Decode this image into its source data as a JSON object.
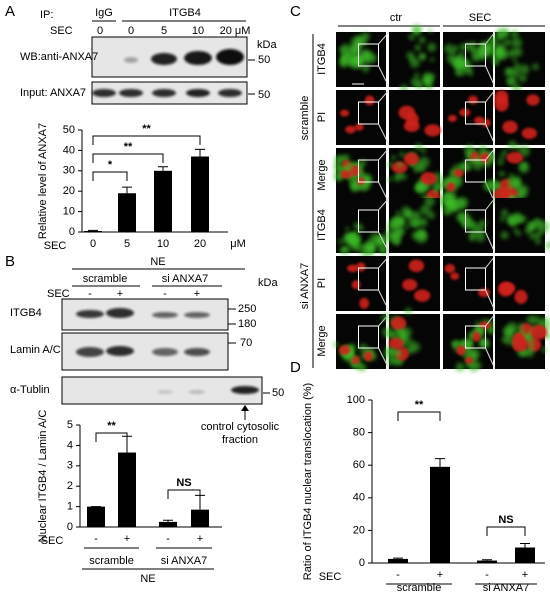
{
  "panel_labels": [
    "A",
    "B",
    "C",
    "D"
  ],
  "panel_a_blot": {
    "ip_label": "IP:",
    "ip_groups": [
      "IgG",
      "ITGB4"
    ],
    "treatment_label": "SEC",
    "lanes": [
      "0",
      "0",
      "5",
      "10",
      "20 μM"
    ],
    "kda_label": "kDa",
    "rows": [
      {
        "label": "WB:anti-ANXA7",
        "marker": "50"
      },
      {
        "label": "Input: ANXA7",
        "marker": "50"
      }
    ]
  },
  "panel_b_blot": {
    "fraction": "NE",
    "groups": [
      "scramble",
      "si ANXA7"
    ],
    "treatment_label": "SEC",
    "lanes": [
      "-",
      "+",
      "-",
      "+"
    ],
    "kda_label": "kDa",
    "rows": [
      {
        "label": "ITGB4",
        "markers": [
          "250",
          "180"
        ]
      },
      {
        "label": "Lamin A/C",
        "markers": [
          "70"
        ]
      },
      {
        "label": "α-Tublin",
        "markers": [
          "50"
        ]
      }
    ],
    "control_note": [
      "control cytosolic",
      "fraction"
    ]
  },
  "panel_c": {
    "conditions": [
      "ctr",
      "SEC"
    ],
    "groups": [
      "scramble",
      "si ANXA7"
    ],
    "channels": [
      "ITGB4",
      "PI",
      "Merge"
    ]
  },
  "chart_data": [
    {
      "type": "bar",
      "ylabel": "Relative level of ANXA7",
      "treatment_label": "SEC",
      "unit": "μM",
      "categories": [
        "0",
        "5",
        "10",
        "20"
      ],
      "values": [
        0.5,
        19,
        30,
        37
      ],
      "errors": [
        0.3,
        3,
        2,
        3.5
      ],
      "color": "#000000",
      "ylim": [
        0,
        50
      ],
      "yticks": [
        0,
        10,
        20,
        30,
        40,
        50
      ],
      "annotations": [
        "*",
        "**",
        "**"
      ]
    },
    {
      "type": "bar",
      "ylabel": "Nuclear ITGB4 / Lamin A/C",
      "treatment_label": "SEC",
      "categories": [
        "-",
        "+",
        "-",
        "+"
      ],
      "groups": [
        "scramble",
        "si ANXA7"
      ],
      "group_caption": "NE",
      "values": [
        1,
        3.65,
        0.25,
        0.85
      ],
      "errors": [
        0,
        0.8,
        0.08,
        0.7
      ],
      "color": "#000000",
      "ylim": [
        0,
        5
      ],
      "yticks": [
        0,
        1,
        2,
        3,
        4,
        5
      ],
      "annotations": [
        "**",
        "NS"
      ]
    },
    {
      "type": "bar",
      "ylabel": "Ratio of ITGB4 nuclear translocation (%)",
      "treatment_label": "SEC",
      "categories": [
        "-",
        "+",
        "-",
        "+"
      ],
      "groups": [
        "scramble",
        "si ANXA7"
      ],
      "values": [
        2.5,
        59,
        1.5,
        9.5
      ],
      "errors": [
        0.5,
        5,
        0.5,
        2.5
      ],
      "color": "#000000",
      "ylim": [
        0,
        100
      ],
      "yticks": [
        0,
        20,
        40,
        60,
        80,
        100
      ],
      "annotations": [
        "**",
        "NS"
      ]
    }
  ]
}
